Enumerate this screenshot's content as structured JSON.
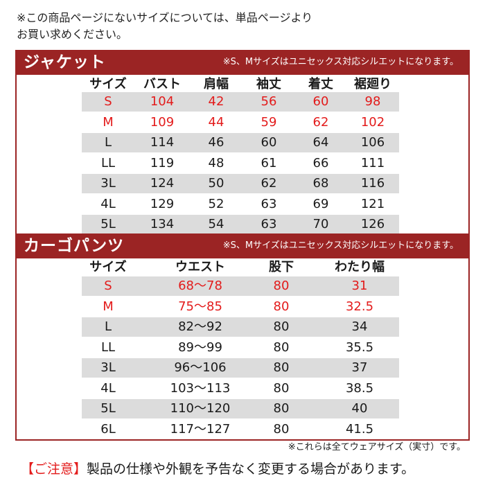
{
  "intro": {
    "line1": "※この商品ページにないサイズについては、単品ページより",
    "line2": "お買い求めください。"
  },
  "jacket": {
    "title": "ジャケット",
    "note": "※S、Mサイズはユニセックス対応シルエットになります。",
    "headers": [
      "サイズ",
      "バスト",
      "肩幅",
      "袖丈",
      "着丈",
      "裾廻り"
    ],
    "rows": [
      [
        "S",
        "104",
        "42",
        "56",
        "60",
        "98"
      ],
      [
        "M",
        "109",
        "44",
        "59",
        "62",
        "102"
      ],
      [
        "L",
        "114",
        "46",
        "60",
        "64",
        "106"
      ],
      [
        "LL",
        "119",
        "48",
        "61",
        "66",
        "111"
      ],
      [
        "3L",
        "124",
        "50",
        "62",
        "68",
        "116"
      ],
      [
        "4L",
        "129",
        "52",
        "63",
        "69",
        "121"
      ],
      [
        "5L",
        "134",
        "54",
        "63",
        "70",
        "126"
      ]
    ],
    "highlight_rows": [
      "S",
      "M"
    ]
  },
  "pants": {
    "title": "カーゴパンツ",
    "note": "※S、Mサイズはユニセックス対応シルエットになります。",
    "headers": [
      "サイズ",
      "ウエスト",
      "股下",
      "わたり幅"
    ],
    "rows": [
      [
        "S",
        "68〜78",
        "80",
        "31"
      ],
      [
        "M",
        "75〜85",
        "80",
        "32.5"
      ],
      [
        "L",
        "82〜92",
        "80",
        "34"
      ],
      [
        "LL",
        "89〜99",
        "80",
        "35.5"
      ],
      [
        "3L",
        "96〜106",
        "80",
        "37"
      ],
      [
        "4L",
        "103〜113",
        "80",
        "38.5"
      ],
      [
        "5L",
        "110〜120",
        "80",
        "40"
      ],
      [
        "6L",
        "117〜127",
        "80",
        "41.5"
      ]
    ],
    "highlight_rows": [
      "S",
      "M"
    ]
  },
  "footnote": "※これらは全てウェアサイズ（実寸）です。",
  "caution": {
    "lead": "【ご注意】",
    "text": "製品の仕様や外観を予告なく変更する場合があります。"
  },
  "colors": {
    "band": "#9b2424",
    "highlight_text": "#e31b1b",
    "row_shade": "#dcdcdc"
  }
}
